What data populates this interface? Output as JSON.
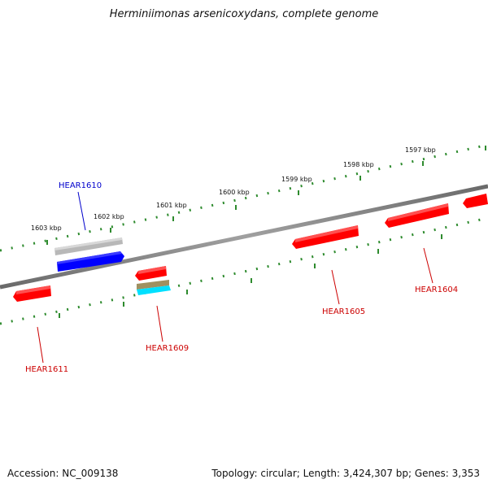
{
  "title": "Herminiimonas arsenicoxydans, complete genome",
  "footer": {
    "accession": "Accession: NC_009138",
    "topology": "Topology: circular; Length: 3,424,307 bp; Genes: 3,353"
  },
  "colors": {
    "backbone": "#808080",
    "ticks": "#2e8b2e",
    "gene_red": "#ff0000",
    "gene_blue": "#0000ff",
    "gene_gray": "#b0b0b0",
    "gene_cyan": "#00ffff",
    "gene_olive": "#a09060",
    "label_red": "#cc0000",
    "label_blue": "#0000cc"
  },
  "scale": {
    "unit": "kbp",
    "major_ticks": [
      "1603 kbp",
      "1602 kbp",
      "1601 kbp",
      "1600 kbp",
      "1599 kbp",
      "1598 kbp",
      "1597 kbp"
    ]
  },
  "genes": [
    {
      "name": "HEAR1610",
      "color": "blue"
    },
    {
      "name": "HEAR1609",
      "color": "red"
    },
    {
      "name": "HEAR1611",
      "color": "red"
    },
    {
      "name": "HEAR1605",
      "color": "red"
    },
    {
      "name": "HEAR1604",
      "color": "red"
    }
  ]
}
